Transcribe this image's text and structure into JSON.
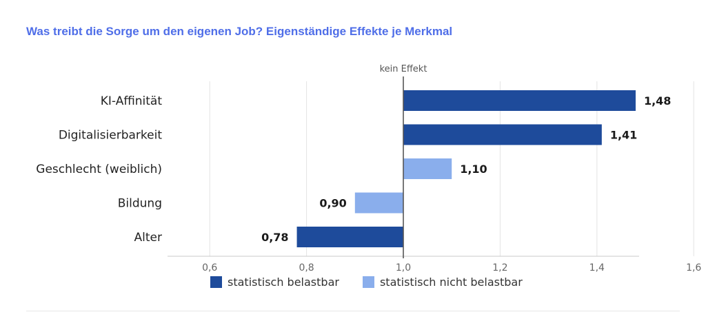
{
  "title": "Was treibt die Sorge um den eigenen Job? Eigenständige Effekte je Merkmal",
  "chart_data": {
    "type": "bar",
    "orientation": "horizontal",
    "baseline": 1.0,
    "baseline_label": "kein Effekt",
    "xlim": [
      0.55,
      1.65
    ],
    "xticks": [
      0.6,
      0.8,
      1.0,
      1.2,
      1.4,
      1.6
    ],
    "xtick_labels": [
      "0,6",
      "0,8",
      "1,0",
      "1,2",
      "1,4",
      "1,6"
    ],
    "grid": true,
    "categories": [
      "KI-Affinität",
      "Digitalisierbarkeit",
      "Geschlecht (weiblich)",
      "Bildung",
      "Alter"
    ],
    "values": [
      1.48,
      1.41,
      1.1,
      0.9,
      0.78
    ],
    "value_labels": [
      "1,48",
      "1,41",
      "1,10",
      "0,90",
      "0,78"
    ],
    "significant": [
      true,
      true,
      false,
      false,
      true
    ],
    "legend_position": "bottom",
    "legend": [
      {
        "label": "statistisch belastbar",
        "color": "#1e4b9b"
      },
      {
        "label": "statistisch nicht belastbar",
        "color": "#8aaeec"
      }
    ],
    "colors": {
      "significant": "#1e4b9b",
      "not_significant": "#8aaeec"
    }
  }
}
